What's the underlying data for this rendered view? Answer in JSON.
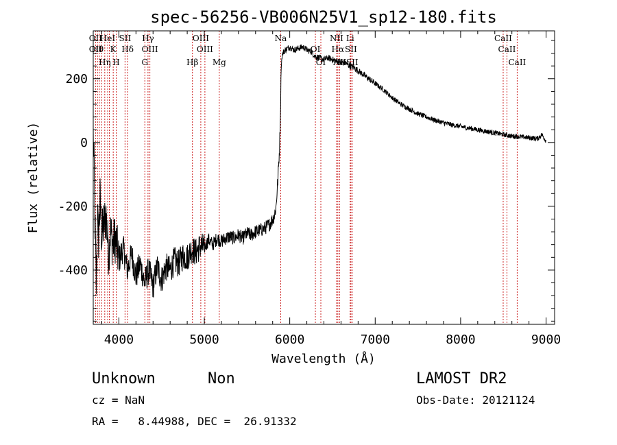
{
  "chart_data": {
    "type": "line",
    "title": "spec-56256-VB006N25V1_sp12-180.fits",
    "xlabel": "Wavelength (Å)",
    "ylabel": "Flux (relative)",
    "xlim": [
      3700,
      9100
    ],
    "ylim": [
      -570,
      350
    ],
    "xticks": [
      4000,
      5000,
      6000,
      7000,
      8000,
      9000
    ],
    "yticks": [
      -400,
      -200,
      0,
      200
    ],
    "grid": false,
    "series": [
      {
        "color": "#000000",
        "x": [
          3700,
          3710,
          3720,
          3735,
          3750,
          3760,
          3780,
          3800,
          3820,
          3850,
          3880,
          3900,
          3930,
          3960,
          4000,
          4050,
          4100,
          4150,
          4200,
          4250,
          4300,
          4350,
          4400,
          4450,
          4500,
          4550,
          4600,
          4650,
          4700,
          4750,
          4800,
          4850,
          4900,
          4950,
          5000,
          5050,
          5100,
          5150,
          5200,
          5250,
          5300,
          5350,
          5400,
          5450,
          5500,
          5550,
          5600,
          5650,
          5700,
          5750,
          5780,
          5800,
          5820,
          5840,
          5860,
          5880,
          5890,
          5900,
          5910,
          5920,
          5930,
          5950,
          6000,
          6050,
          6100,
          6150,
          6200,
          6250,
          6300,
          6350,
          6400,
          6450,
          6500,
          6550,
          6600,
          6650,
          6700,
          6750,
          6800,
          6850,
          6900,
          6950,
          7000,
          7100,
          7200,
          7300,
          7400,
          7500,
          7600,
          7700,
          7800,
          7900,
          8000,
          8100,
          8200,
          8300,
          8400,
          8500,
          8600,
          8700,
          8800,
          8900,
          8950,
          9000
        ],
        "y": [
          20,
          -80,
          -250,
          -450,
          -200,
          -320,
          -180,
          -300,
          -260,
          -230,
          -350,
          -280,
          -320,
          -300,
          -370,
          -330,
          -400,
          -350,
          -420,
          -380,
          -440,
          -400,
          -450,
          -390,
          -430,
          -390,
          -400,
          -370,
          -380,
          -355,
          -360,
          -335,
          -345,
          -325,
          -330,
          -305,
          -320,
          -300,
          -310,
          -300,
          -295,
          -300,
          -290,
          -300,
          -285,
          -290,
          -280,
          -275,
          -270,
          -260,
          -250,
          -240,
          -230,
          -200,
          -120,
          -20,
          80,
          240,
          270,
          280,
          285,
          290,
          300,
          290,
          295,
          300,
          290,
          285,
          270,
          265,
          260,
          265,
          260,
          255,
          250,
          250,
          240,
          235,
          225,
          215,
          205,
          195,
          185,
          165,
          140,
          120,
          105,
          90,
          80,
          70,
          62,
          55,
          50,
          45,
          40,
          35,
          30,
          25,
          20,
          18,
          15,
          12,
          25,
          5
        ]
      }
    ],
    "line_markers": [
      {
        "w": 3727,
        "labels": [
          "OII",
          "OII"
        ]
      },
      {
        "w": 3750,
        "labels": [
          "Hθ"
        ]
      },
      {
        "w": 3771,
        "labels": []
      },
      {
        "w": 3797,
        "labels": []
      },
      {
        "w": 3835,
        "labels": [
          "Hη"
        ]
      },
      {
        "w": 3869,
        "labels": [
          "HeI"
        ]
      },
      {
        "w": 3889,
        "labels": []
      },
      {
        "w": 3934,
        "labels": [
          "K"
        ]
      },
      {
        "w": 3969,
        "labels": [
          "H"
        ]
      },
      {
        "w": 4072,
        "labels": [
          "SII"
        ]
      },
      {
        "w": 4102,
        "labels": [
          "Hδ"
        ]
      },
      {
        "w": 4304,
        "labels": [
          "G"
        ]
      },
      {
        "w": 4341,
        "labels": [
          "Hγ"
        ]
      },
      {
        "w": 4363,
        "labels": [
          "OIII"
        ]
      },
      {
        "w": 4861,
        "labels": [
          "Hβ"
        ]
      },
      {
        "w": 4959,
        "labels": [
          "OIII"
        ]
      },
      {
        "w": 5007,
        "labels": [
          "OIII"
        ]
      },
      {
        "w": 5175,
        "labels": [
          "Mg"
        ]
      },
      {
        "w": 5894,
        "labels": [
          "Na"
        ]
      },
      {
        "w": 6300,
        "labels": [
          "OI"
        ]
      },
      {
        "w": 6364,
        "labels": [
          "OI"
        ]
      },
      {
        "w": 6548,
        "labels": [
          "NII"
        ]
      },
      {
        "w": 6563,
        "labels": [
          "Hα"
        ]
      },
      {
        "w": 6583,
        "labels": [
          "NII"
        ]
      },
      {
        "w": 6707,
        "labels": [
          "Li"
        ]
      },
      {
        "w": 6716,
        "labels": [
          "SII"
        ]
      },
      {
        "w": 6731,
        "labels": [
          "SII"
        ]
      },
      {
        "w": 8498,
        "labels": [
          "CaII"
        ]
      },
      {
        "w": 8542,
        "labels": [
          "CaII"
        ]
      },
      {
        "w": 8662,
        "labels": [
          "CaII"
        ]
      }
    ],
    "marker_color": "#cc2222"
  },
  "info": {
    "class": "Unknown",
    "subclass": "Non",
    "survey": "LAMOST DR2",
    "cz": "cz = NaN",
    "obs_date": "Obs-Date: 20121124",
    "radec": "RA =   8.44988, DEC =  26.91332"
  }
}
